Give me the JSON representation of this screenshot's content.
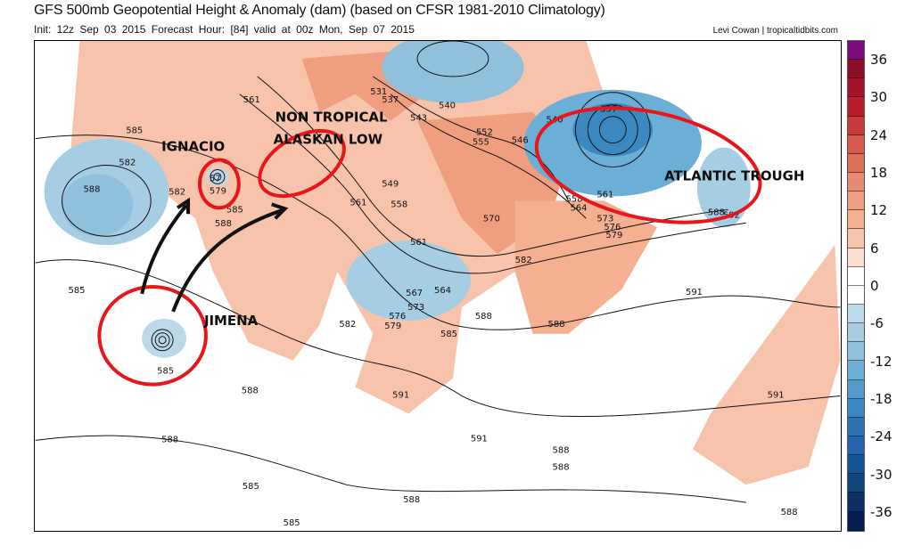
{
  "header": {
    "title": "GFS 500mb Geopotential Height & Anomaly (dam) (based on CFSR 1981-2010 Climatology)",
    "subtitle": "Init: 12z Sep 03 2015   Forecast Hour: [84]   valid at 00z Mon, Sep 07 2015",
    "credit": "Levi Cowan | tropicaltidbits.com"
  },
  "colorbar": {
    "ticks": [
      "36",
      "30",
      "24",
      "18",
      "12",
      "6",
      "0",
      "-6",
      "-12",
      "-18",
      "-24",
      "-30",
      "-36"
    ],
    "colors": [
      "#7b0b7e",
      "#8c0d25",
      "#a3142a",
      "#b81e2c",
      "#c8393a",
      "#d55a49",
      "#de6f57",
      "#e78b6f",
      "#ef9f80",
      "#f4b091",
      "#f7c4ab",
      "#fde0d0",
      "#ffffff",
      "#ffffff",
      "#bcd9ea",
      "#a5cde3",
      "#90c0dc",
      "#6baed6",
      "#4f9bcb",
      "#3b87c0",
      "#2c73b4",
      "#2264ae",
      "#165595",
      "#10447c",
      "#0a3161",
      "#081d58"
    ]
  },
  "annotations": {
    "ignacio": "IGNACIO",
    "alaskan_low_1": "NON TROPICAL",
    "alaskan_low_2": "ALASKAN LOW",
    "atlantic_trough": "ATLANTIC TROUGH",
    "jimena": "JIMENA",
    "circle_color": "#e8161b",
    "arrow_color": "#111111"
  },
  "contour_labels": [
    "585",
    "582",
    "588",
    "561",
    "582",
    "579",
    "57",
    "585",
    "588",
    "561",
    "558",
    "549",
    "531",
    "537",
    "543",
    "540",
    "552",
    "555",
    "546",
    "540",
    "537",
    "561",
    "558",
    "564",
    "570",
    "573",
    "576",
    "579",
    "582",
    "588",
    "591",
    "582",
    "561",
    "567",
    "564",
    "573",
    "576",
    "579",
    "582",
    "585",
    "588",
    "588",
    "585",
    "585",
    "588",
    "588",
    "591",
    "591",
    "588",
    "588",
    "585",
    "585",
    "588",
    "588",
    "591"
  ]
}
